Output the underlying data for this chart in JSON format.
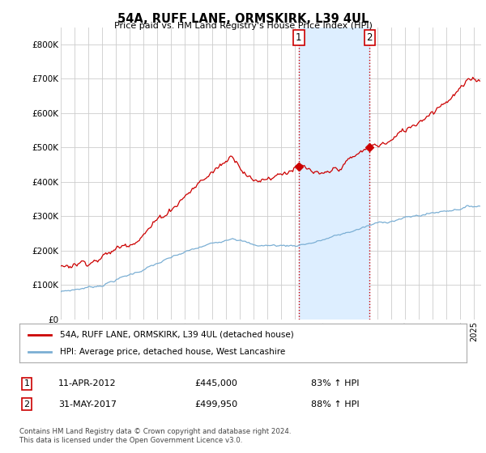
{
  "title": "54A, RUFF LANE, ORMSKIRK, L39 4UL",
  "subtitle": "Price paid vs. HM Land Registry's House Price Index (HPI)",
  "xlim_start": 1995.0,
  "xlim_end": 2025.5,
  "ylim": [
    0,
    850000
  ],
  "yticks": [
    0,
    100000,
    200000,
    300000,
    400000,
    500000,
    600000,
    700000,
    800000
  ],
  "ytick_labels": [
    "£0",
    "£100K",
    "£200K",
    "£300K",
    "£400K",
    "£500K",
    "£600K",
    "£700K",
    "£800K"
  ],
  "hpi_color": "#7bafd4",
  "price_color": "#cc0000",
  "vline_color": "#cc0000",
  "vline_style": ":",
  "shade_color": "#ddeeff",
  "transaction_1": {
    "date_num": 2012.27,
    "price": 445000
  },
  "transaction_2": {
    "date_num": 2017.41,
    "price": 499950
  },
  "legend_label_price": "54A, RUFF LANE, ORMSKIRK, L39 4UL (detached house)",
  "legend_label_hpi": "HPI: Average price, detached house, West Lancashire",
  "annotation_1_date": "11-APR-2012",
  "annotation_1_price": "£445,000",
  "annotation_1_hpi": "83% ↑ HPI",
  "annotation_2_date": "31-MAY-2017",
  "annotation_2_price": "£499,950",
  "annotation_2_hpi": "88% ↑ HPI",
  "footer": "Contains HM Land Registry data © Crown copyright and database right 2024.\nThis data is licensed under the Open Government Licence v3.0.",
  "background_color": "#ffffff",
  "grid_color": "#cccccc"
}
